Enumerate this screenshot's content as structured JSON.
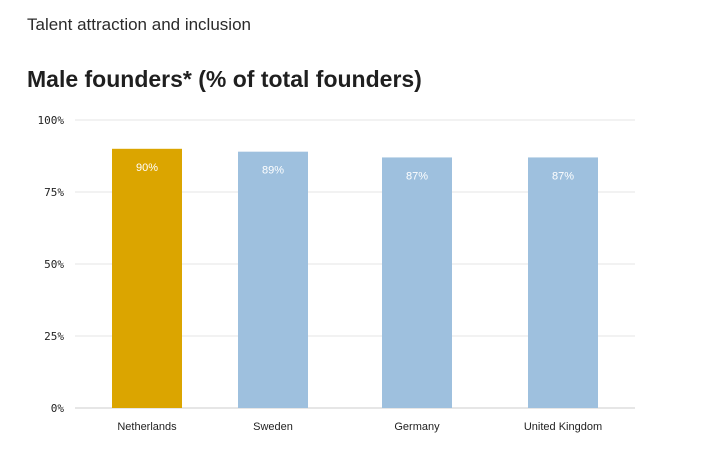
{
  "header": {
    "section_title": "Talent attraction and inclusion"
  },
  "colors": {
    "highlight_bar": "#dba500",
    "default_bar": "#9ec0de",
    "gridline": "#e6e6e6",
    "baseline": "#cccccc"
  },
  "chart_data": {
    "type": "bar",
    "title": "Male founders* (% of total founders)",
    "xlabel": "",
    "ylabel": "",
    "ylim": [
      0,
      100
    ],
    "yticks": [
      0,
      25,
      50,
      75,
      100
    ],
    "ytick_labels": [
      "0%",
      "25%",
      "50%",
      "75%",
      "100%"
    ],
    "grid": true,
    "categories": [
      "Netherlands",
      "Sweden",
      "Germany",
      "United Kingdom"
    ],
    "values": [
      90,
      89,
      87,
      87
    ],
    "data_labels": [
      "90%",
      "89%",
      "87%",
      "87%"
    ],
    "highlight": [
      "Netherlands"
    ]
  }
}
